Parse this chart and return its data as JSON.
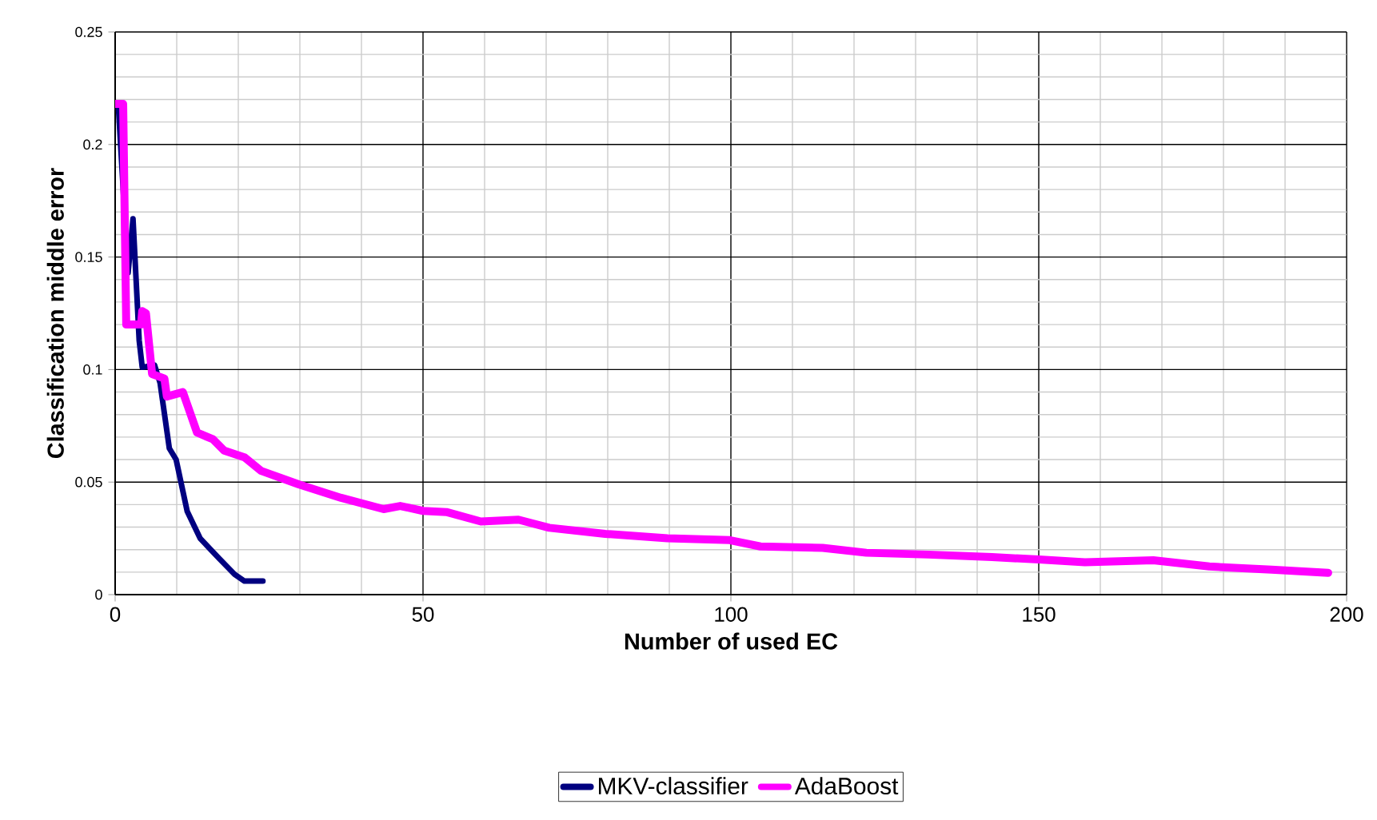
{
  "chart_data": {
    "type": "line",
    "xlabel": "Number of used EC",
    "ylabel": "Classification middle error",
    "xlim": [
      0,
      200
    ],
    "ylim": [
      0,
      0.25
    ],
    "xticks": [
      0,
      50,
      100,
      150,
      200
    ],
    "yticks": [
      0,
      0.05,
      0.1,
      0.15,
      0.2,
      0.25
    ],
    "grid": true,
    "legend": "bottom",
    "line_style": "solid",
    "series": [
      {
        "name": "MKV-classifier",
        "color": "#000080",
        "x": [
          0.5,
          2.1,
          2.9,
          3.9,
          4.4,
          6.4,
          7.3,
          8.8,
          9.9,
          11.7,
          13.8,
          16.9,
          19.4,
          21,
          24
        ],
        "values": [
          0.218,
          0.143,
          0.167,
          0.113,
          0.101,
          0.102,
          0.094,
          0.065,
          0.06,
          0.037,
          0.025,
          0.016,
          0.009,
          0.006,
          0.006
        ]
      },
      {
        "name": "AdaBoost",
        "color": "#ff00ff",
        "x": [
          0,
          1.3,
          1.8,
          4.2,
          4.4,
          5,
          6,
          8,
          8.4,
          11,
          13.3,
          15.9,
          17.7,
          21,
          23.7,
          29.8,
          36.7,
          43.6,
          46.3,
          50,
          53.8,
          59.4,
          65.5,
          70.5,
          79.6,
          89.7,
          99.8,
          104.8,
          114.9,
          122,
          132,
          142.4,
          150,
          157.5,
          168.6,
          177.7,
          187.8,
          197
        ],
        "values": [
          0.218,
          0.218,
          0.12,
          0.12,
          0.126,
          0.125,
          0.098,
          0.096,
          0.088,
          0.09,
          0.072,
          0.069,
          0.064,
          0.061,
          0.055,
          0.049,
          0.043,
          0.038,
          0.0394,
          0.0372,
          0.0367,
          0.0325,
          0.0333,
          0.0297,
          0.027,
          0.025,
          0.0242,
          0.0214,
          0.0208,
          0.0186,
          0.0178,
          0.0167,
          0.0156,
          0.0144,
          0.0153,
          0.0125,
          0.0111,
          0.0097
        ]
      }
    ]
  }
}
